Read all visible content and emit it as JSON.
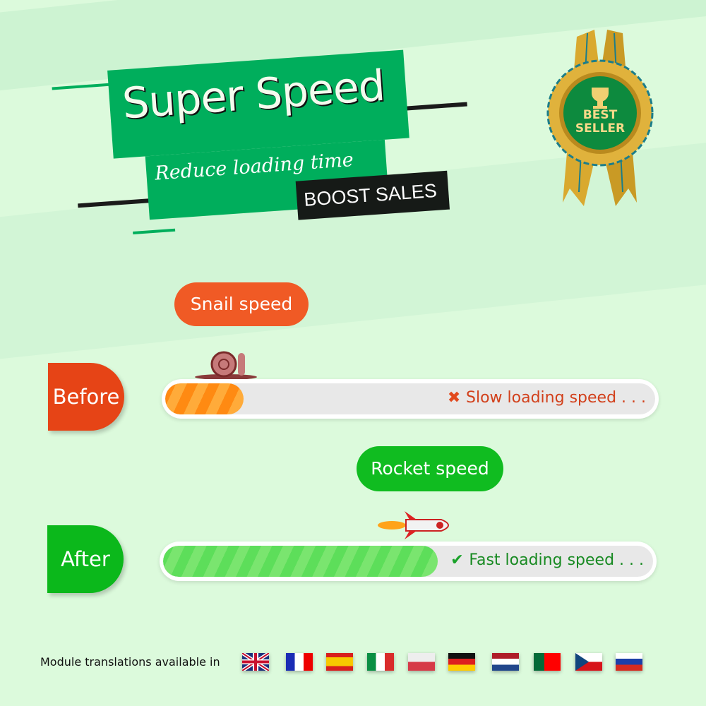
{
  "banner": {
    "title": "Super Speed",
    "subtitle": "Reduce loading time",
    "tagline": "BOOST SALES"
  },
  "badge": {
    "line1": "BEST",
    "line2": "SELLER",
    "icon": "trophy-icon"
  },
  "before": {
    "label": "Before",
    "bubble": "Snail speed",
    "status": "Slow loading speed . . .",
    "status_icon": "cross-icon",
    "progress_percent": 16,
    "color": "#e84a1a",
    "fill_color": "#ff9a1a"
  },
  "after": {
    "label": "After",
    "bubble": "Rocket speed",
    "status": "Fast loading speed . . .",
    "status_icon": "check-icon",
    "progress_percent": 56,
    "color": "#08b51a",
    "fill_color": "#45d54a"
  },
  "footer": {
    "label": "Module translations available in",
    "flags": [
      "English",
      "French",
      "Spanish",
      "Italian",
      "Polish",
      "German",
      "Dutch",
      "Portuguese",
      "Czech",
      "Russian"
    ]
  }
}
